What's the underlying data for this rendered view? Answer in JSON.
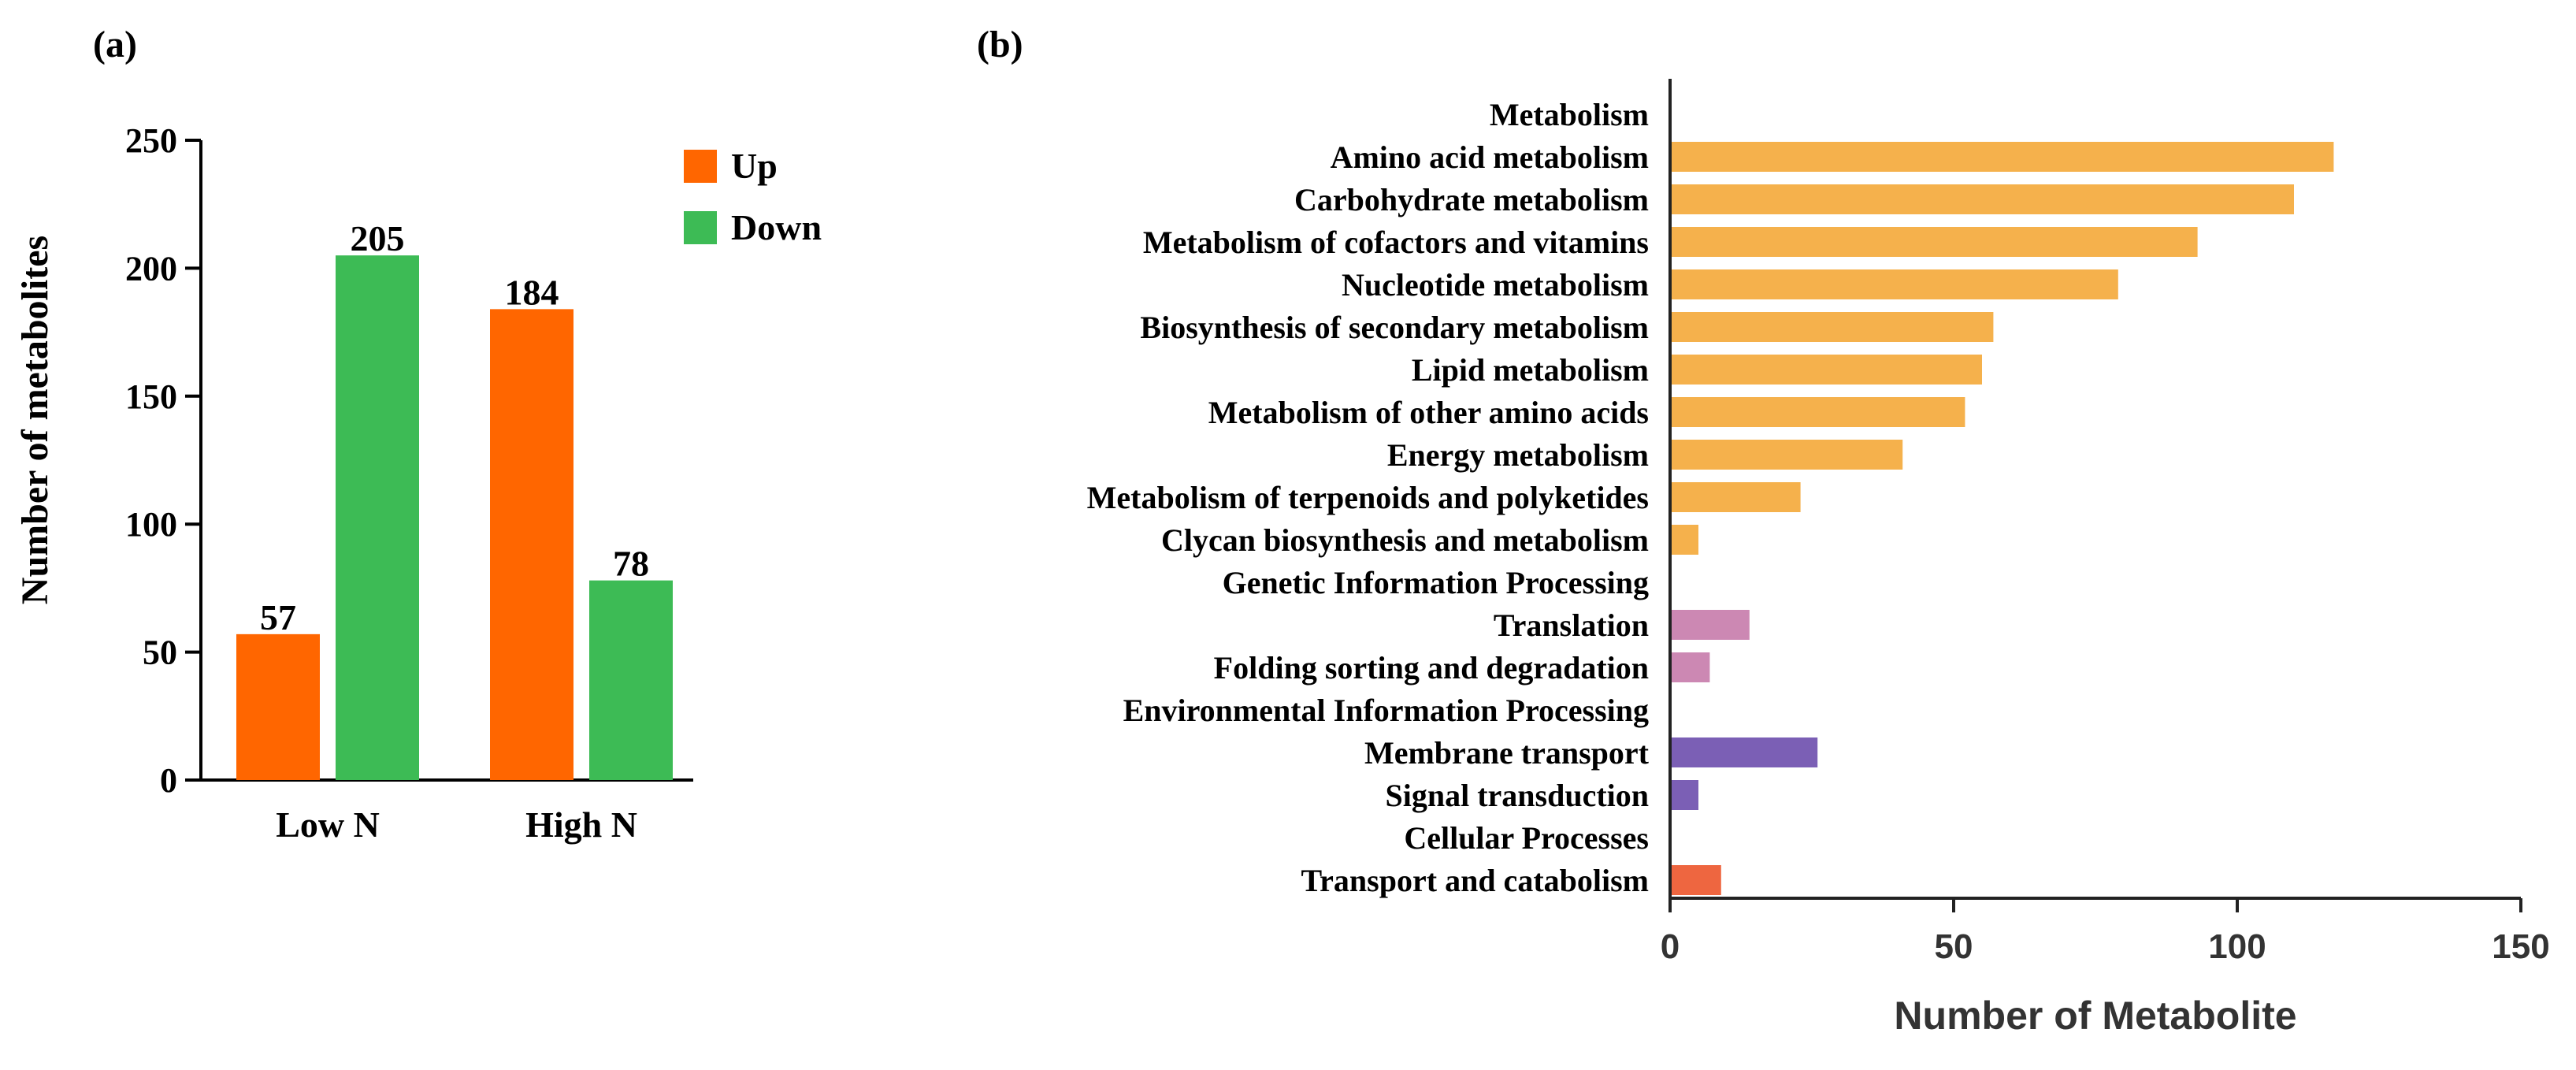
{
  "panels": {
    "a_label": "(a)",
    "b_label": "(b)"
  },
  "chart_data": [
    {
      "type": "bar",
      "panel": "a",
      "title": "",
      "xlabel": "",
      "ylabel": "Number of metabolites",
      "ylim": [
        0,
        250
      ],
      "yticks": [
        0,
        50,
        100,
        150,
        200,
        250
      ],
      "categories": [
        "Low N",
        "High N"
      ],
      "series": [
        {
          "name": "Up",
          "color": "#ff6600",
          "values": [
            57,
            184
          ]
        },
        {
          "name": "Down",
          "color": "#3dbb55",
          "values": [
            205,
            78
          ]
        }
      ],
      "legend": "top-right",
      "data_labels": true
    },
    {
      "type": "bar",
      "orientation": "horizontal",
      "panel": "b",
      "title": "",
      "xlabel": "Number of Metabolite",
      "ylabel": "",
      "xlim": [
        0,
        150
      ],
      "xticks": [
        0,
        50,
        100,
        150
      ],
      "categories": [
        "Metabolism",
        "Amino acid metabolism",
        "Carbohydrate metabolism",
        "Metabolism of cofactors and vitamins",
        "Nucleotide metabolism",
        "Biosynthesis of secondary metabolism",
        "Lipid metabolism",
        "Metabolism of other amino acids",
        "Energy metabolism",
        "Metabolism of terpenoids and polyketides",
        "Clycan biosynthesis and metabolism",
        "Genetic Information Processing",
        "Translation",
        "Folding sorting and degradation",
        "Environmental Information Processing",
        "Membrane transport",
        "Signal transduction",
        "Cellular Processes",
        "Transport and catabolism"
      ],
      "values": [
        null,
        117,
        110,
        93,
        79,
        57,
        55,
        52,
        41,
        23,
        5,
        null,
        14,
        7,
        null,
        26,
        5,
        null,
        9
      ],
      "colors": [
        "#f5b14c",
        "#f5b14c",
        "#f5b14c",
        "#f5b14c",
        "#f5b14c",
        "#f5b14c",
        "#f5b14c",
        "#f5b14c",
        "#f5b14c",
        "#f5b14c",
        "#f5b14c",
        "#cc88b3",
        "#cc88b3",
        "#cc88b3",
        "#7b5fb5",
        "#7b5fb5",
        "#7b5fb5",
        "#ee6640",
        "#ee6640"
      ]
    }
  ]
}
